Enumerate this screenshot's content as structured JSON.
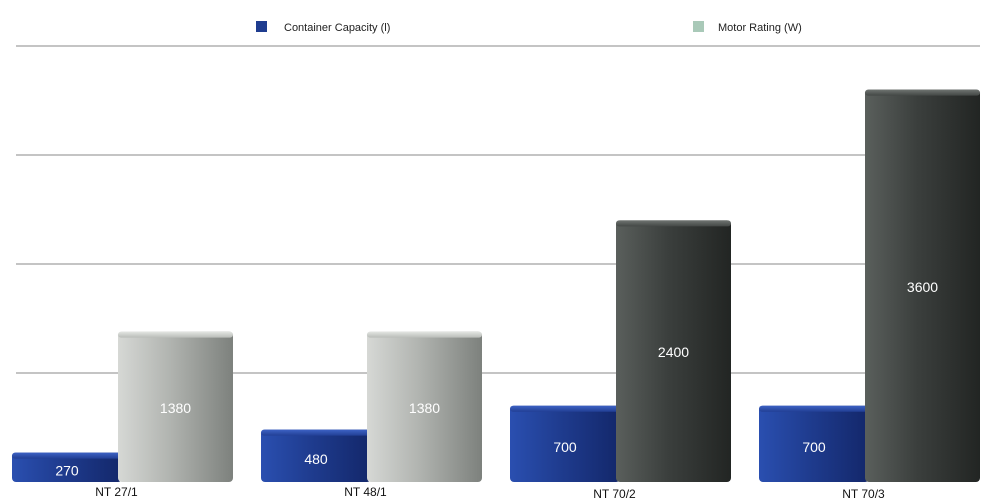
{
  "chart_data": {
    "type": "bar",
    "title": "",
    "xlabel": "",
    "ylabel": "",
    "categories": [
      "NT 27/1",
      "NT 48/1",
      "NT 70/2",
      "NT 70/3"
    ],
    "series": [
      {
        "name": "Container Capacity (l)",
        "values": [
          270,
          480,
          700,
          700
        ],
        "labels": [
          "270",
          "480",
          "700",
          "700"
        ],
        "color": "#1f3c8f"
      },
      {
        "name": "Motor Rating (W)",
        "values": [
          1380,
          1380,
          2400,
          3600
        ],
        "labels": [
          "1380",
          "1380",
          "2400",
          "3600"
        ],
        "color": "#a9c9b8"
      }
    ],
    "ylim": [
      0,
      4000
    ],
    "grid": true,
    "legend_position": "top",
    "bar_colors": {
      "capacity": "#1f3c8f",
      "motor_light": "#b4b7b3",
      "motor_dark": "#3b3f3d"
    }
  }
}
